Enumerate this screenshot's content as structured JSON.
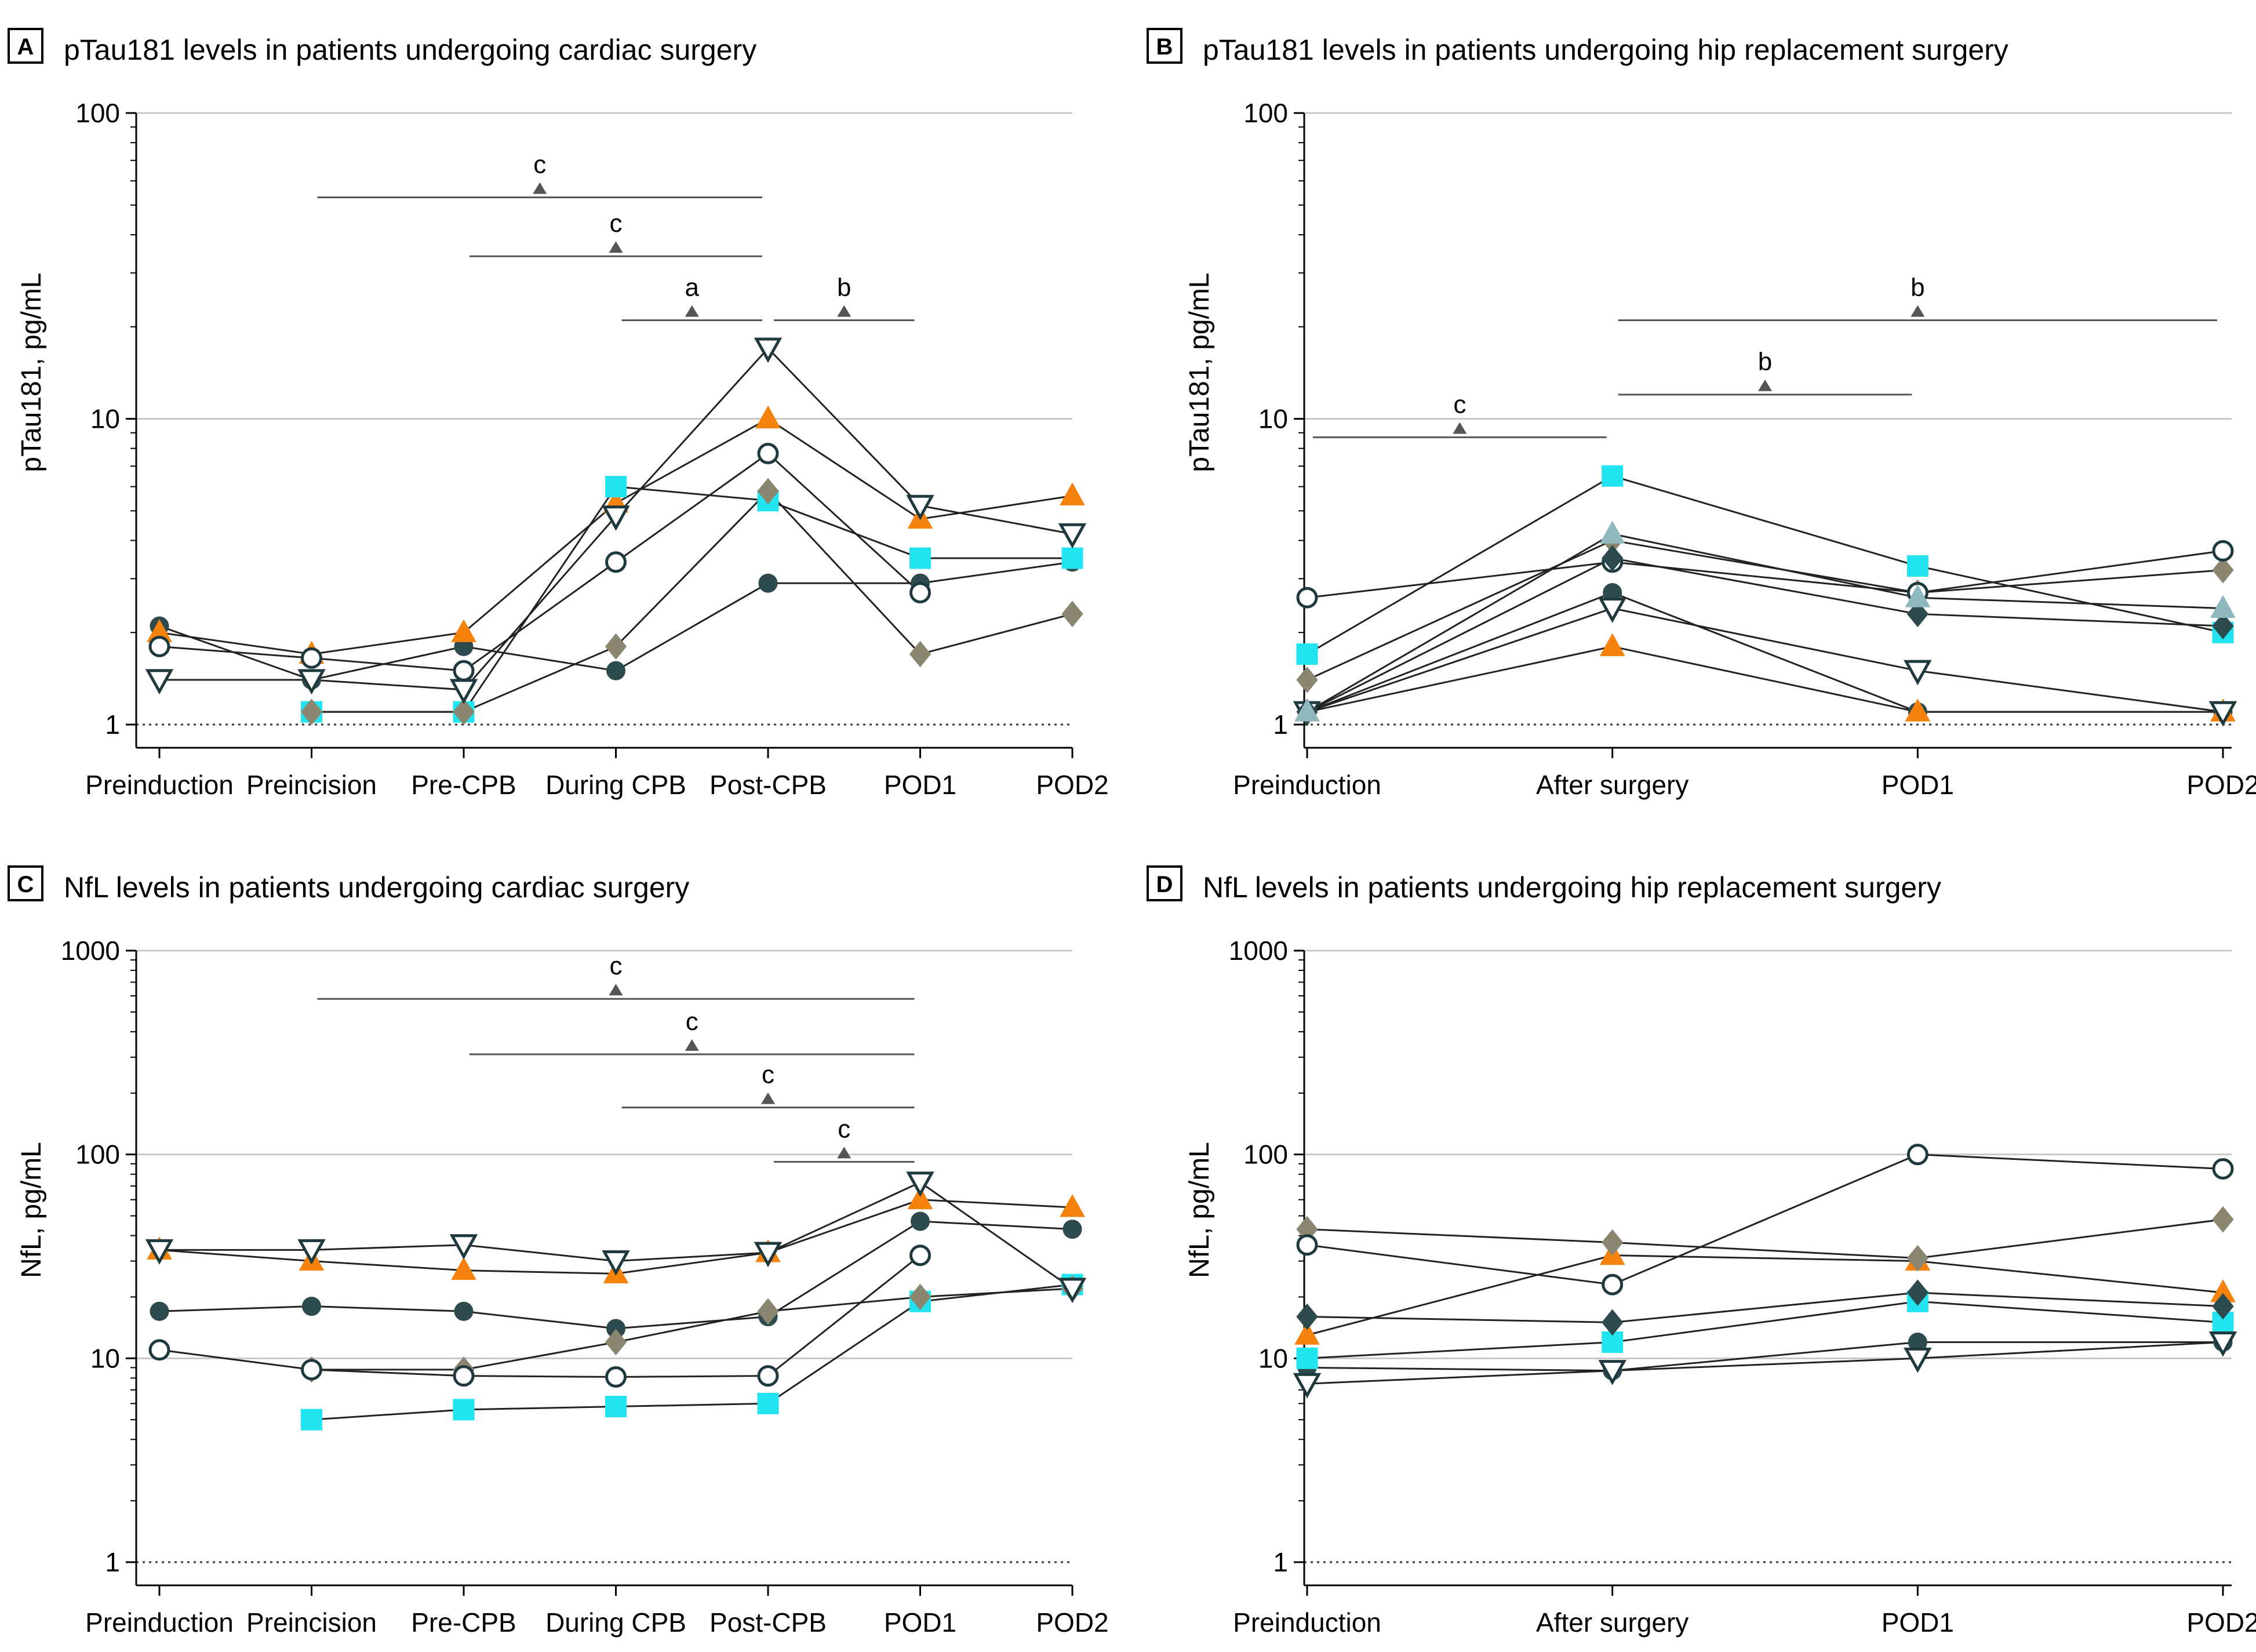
{
  "colors": {
    "dark_teal": "#2d4a4e",
    "orange": "#f5820d",
    "cyan": "#22e4f0",
    "khaki": "#8b8670",
    "light_teal": "#8fb7be",
    "grid": "#c8c8c8",
    "line": "#222222"
  },
  "chart_data": [
    {
      "panel": "A",
      "type": "line",
      "title": "pTau181 levels in patients undergoing cardiac surgery",
      "ylabel": "pTau181, pg/mL",
      "yscale": "log",
      "ylim": [
        1,
        100
      ],
      "yticks": [
        "1",
        "10",
        "100"
      ],
      "categories": [
        "Preinduction",
        "Preincision",
        "Pre-CPB",
        "During CPB",
        "Post-CPB",
        "POD1",
        "POD2"
      ],
      "series": [
        {
          "name": "s1",
          "marker": "circle",
          "fill": "dark_teal",
          "values": [
            2.1,
            1.4,
            1.8,
            1.5,
            2.9,
            2.9,
            3.4
          ]
        },
        {
          "name": "s2",
          "marker": "triangle-up",
          "fill": "orange",
          "values": [
            2.0,
            1.7,
            2.0,
            5.3,
            10.0,
            4.7,
            5.6
          ]
        },
        {
          "name": "s3",
          "marker": "square",
          "fill": "cyan",
          "values": [
            null,
            1.1,
            1.1,
            6.0,
            5.4,
            3.5,
            3.5
          ]
        },
        {
          "name": "s4",
          "marker": "diamond",
          "fill": "khaki",
          "values": [
            null,
            1.1,
            1.1,
            1.8,
            5.8,
            1.7,
            2.3
          ]
        },
        {
          "name": "s5",
          "marker": "circle-open",
          "fill": "white",
          "values": [
            1.8,
            1.65,
            1.5,
            3.4,
            7.7,
            2.7,
            null
          ]
        },
        {
          "name": "s6",
          "marker": "triangle-down-open",
          "fill": "white",
          "values": [
            1.4,
            1.4,
            1.3,
            4.8,
            17.0,
            5.2,
            4.2
          ]
        }
      ],
      "significance": [
        {
          "from": "Preincision",
          "to": "Post-CPB",
          "label": "c",
          "y": 53
        },
        {
          "from": "Pre-CPB",
          "to": "Post-CPB",
          "label": "c",
          "y": 34
        },
        {
          "from": "During CPB",
          "to": "Post-CPB",
          "label": "a",
          "y": 21
        },
        {
          "from": "Post-CPB",
          "to": "POD1",
          "label": "b",
          "y": 21
        }
      ]
    },
    {
      "panel": "B",
      "type": "line",
      "title": "pTau181 levels in patients undergoing hip replacement surgery",
      "ylabel": "pTau181, pg/mL",
      "yscale": "log",
      "ylim": [
        1,
        100
      ],
      "yticks": [
        "1",
        "10",
        "100"
      ],
      "categories": [
        "Preinduction",
        "After surgery",
        "POD1",
        "POD2"
      ],
      "series": [
        {
          "name": "s1",
          "marker": "circle",
          "fill": "dark_teal",
          "values": [
            1.1,
            2.7,
            1.1,
            1.1
          ]
        },
        {
          "name": "s2",
          "marker": "triangle-up",
          "fill": "orange",
          "values": [
            1.1,
            1.8,
            1.1,
            1.1
          ]
        },
        {
          "name": "s3",
          "marker": "square",
          "fill": "cyan",
          "values": [
            1.7,
            6.5,
            3.3,
            2.0
          ]
        },
        {
          "name": "s4",
          "marker": "diamond",
          "fill": "khaki",
          "values": [
            1.4,
            4.0,
            2.7,
            3.2
          ]
        },
        {
          "name": "s5",
          "marker": "circle-open",
          "fill": "white",
          "values": [
            2.6,
            3.4,
            2.7,
            3.7
          ]
        },
        {
          "name": "s6",
          "marker": "triangle-down-open",
          "fill": "white",
          "values": [
            1.1,
            2.4,
            1.5,
            1.1
          ]
        },
        {
          "name": "s7",
          "marker": "diamond",
          "fill": "dark_teal",
          "values": [
            1.1,
            3.5,
            2.3,
            2.1
          ]
        },
        {
          "name": "s8",
          "marker": "triangle-up",
          "fill": "light_teal",
          "values": [
            1.1,
            4.2,
            2.6,
            2.4
          ]
        }
      ],
      "significance": [
        {
          "from": "After surgery",
          "to": "POD2",
          "label": "b",
          "y": 21
        },
        {
          "from": "After surgery",
          "to": "POD1",
          "label": "b",
          "y": 12
        },
        {
          "from": "Preinduction",
          "to": "After surgery",
          "label": "c",
          "y": 8.7
        }
      ]
    },
    {
      "panel": "C",
      "type": "line",
      "title": "NfL levels in patients undergoing cardiac surgery",
      "ylabel": "NfL, pg/mL",
      "yscale": "log",
      "ylim": [
        1,
        1000
      ],
      "yticks": [
        "1",
        "10",
        "100",
        "1000"
      ],
      "categories": [
        "Preinduction",
        "Preincision",
        "Pre-CPB",
        "During CPB",
        "Post-CPB",
        "POD1",
        "POD2"
      ],
      "series": [
        {
          "name": "s1",
          "marker": "circle",
          "fill": "dark_teal",
          "values": [
            17,
            18,
            17,
            14,
            16,
            47,
            43
          ]
        },
        {
          "name": "s2",
          "marker": "triangle-up",
          "fill": "orange",
          "values": [
            34,
            30,
            27,
            26,
            33,
            60,
            55
          ]
        },
        {
          "name": "s3",
          "marker": "square",
          "fill": "cyan",
          "values": [
            null,
            5,
            5.6,
            5.8,
            6,
            19,
            23
          ]
        },
        {
          "name": "s4",
          "marker": "diamond",
          "fill": "khaki",
          "values": [
            null,
            8.8,
            8.8,
            12,
            17,
            20,
            22
          ]
        },
        {
          "name": "s5",
          "marker": "circle-open",
          "fill": "white",
          "values": [
            11,
            8.8,
            8.2,
            8.1,
            8.2,
            32,
            null
          ]
        },
        {
          "name": "s6",
          "marker": "triangle-down-open",
          "fill": "white",
          "values": [
            34,
            34,
            36,
            30,
            33,
            73,
            22
          ]
        }
      ],
      "significance": [
        {
          "from": "Preincision",
          "to": "POD1",
          "label": "c",
          "y": 580
        },
        {
          "from": "Pre-CPB",
          "to": "POD1",
          "label": "c",
          "y": 310
        },
        {
          "from": "During CPB",
          "to": "POD1",
          "label": "c",
          "y": 170
        },
        {
          "from": "Post-CPB",
          "to": "POD1",
          "label": "c",
          "y": 92
        }
      ]
    },
    {
      "panel": "D",
      "type": "line",
      "title": "NfL levels in patients undergoing hip replacement surgery",
      "ylabel": "NfL, pg/mL",
      "yscale": "log",
      "ylim": [
        1,
        1000
      ],
      "yticks": [
        "1",
        "10",
        "100",
        "1000"
      ],
      "categories": [
        "Preinduction",
        "After surgery",
        "POD1",
        "POD2"
      ],
      "series": [
        {
          "name": "s1",
          "marker": "circle",
          "fill": "dark_teal",
          "values": [
            9,
            8.7,
            12,
            12
          ]
        },
        {
          "name": "s2",
          "marker": "triangle-up",
          "fill": "orange",
          "values": [
            13,
            32,
            30,
            21
          ]
        },
        {
          "name": "s3",
          "marker": "square",
          "fill": "cyan",
          "values": [
            10,
            12,
            19,
            15
          ]
        },
        {
          "name": "s4",
          "marker": "diamond",
          "fill": "khaki",
          "values": [
            43,
            37,
            31,
            48
          ]
        },
        {
          "name": "s5",
          "marker": "circle-open",
          "fill": "white",
          "values": [
            36,
            23,
            100,
            85
          ]
        },
        {
          "name": "s6",
          "marker": "triangle-down-open",
          "fill": "white",
          "values": [
            7.5,
            8.7,
            10,
            12
          ]
        },
        {
          "name": "s7",
          "marker": "diamond",
          "fill": "dark_teal",
          "values": [
            16,
            15,
            21,
            18
          ]
        }
      ],
      "significance": []
    }
  ]
}
